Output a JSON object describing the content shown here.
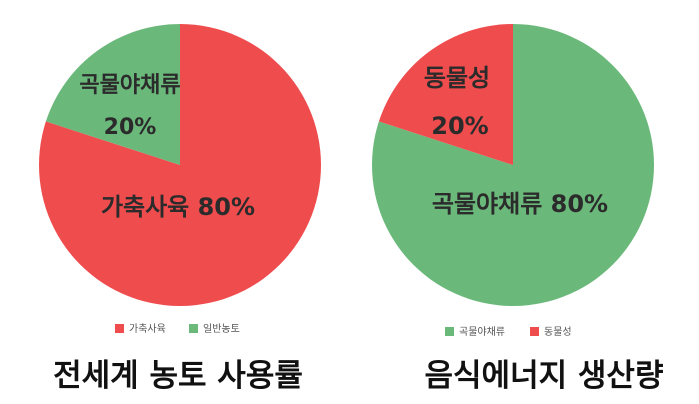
{
  "chart_data": [
    {
      "type": "pie",
      "title": "전세계 농토 사용률",
      "slices": [
        {
          "name": "가축사육",
          "value": 80,
          "color": "#ef4c4e",
          "label_lines": [
            "가축사육 80%"
          ]
        },
        {
          "name": "일반농토",
          "value": 20,
          "color": "#6bb87b",
          "label_lines": [
            "곡물야채류",
            "20%"
          ]
        }
      ],
      "legend": {
        "position": "bottom",
        "entries": [
          "가축사육",
          "일반농토"
        ]
      }
    },
    {
      "type": "pie",
      "title": "음식에너지 생산량",
      "slices": [
        {
          "name": "곡물야채류",
          "value": 80,
          "color": "#6bb87b",
          "label_lines": [
            "곡물야채류 80%"
          ]
        },
        {
          "name": "동물성",
          "value": 20,
          "color": "#ef4c4e",
          "label_lines": [
            "동물성",
            "20%"
          ]
        }
      ],
      "legend": {
        "position": "bottom",
        "entries": [
          "곡물야채류",
          "동물성"
        ]
      }
    }
  ]
}
